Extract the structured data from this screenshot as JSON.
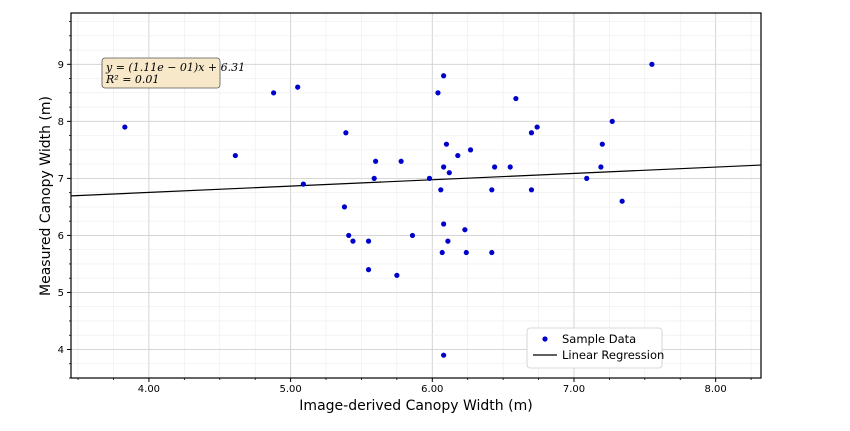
{
  "chart_data": {
    "type": "scatter",
    "xlabel": "Image-derived Canopy Width (m)",
    "ylabel": "Measured Canopy Width (m)",
    "xlim": [
      3.45,
      8.32
    ],
    "ylim": [
      3.5,
      9.9
    ],
    "x_ticks": [
      "4.00",
      "5.00",
      "6.00",
      "7.00",
      "8.00"
    ],
    "y_ticks": [
      "4",
      "5",
      "6",
      "7",
      "8",
      "9"
    ],
    "grid": true,
    "legend_position": "lower right",
    "series": [
      {
        "name": "Sample Data",
        "kind": "points",
        "color": "#0000cc",
        "points": [
          [
            3.83,
            7.9
          ],
          [
            4.61,
            7.4
          ],
          [
            4.88,
            8.5
          ],
          [
            5.05,
            8.6
          ],
          [
            5.09,
            6.9
          ],
          [
            5.38,
            6.5
          ],
          [
            5.39,
            7.8
          ],
          [
            5.41,
            6.0
          ],
          [
            5.44,
            5.9
          ],
          [
            5.55,
            5.9
          ],
          [
            5.55,
            5.4
          ],
          [
            5.59,
            7.0
          ],
          [
            5.6,
            7.3
          ],
          [
            5.75,
            5.3
          ],
          [
            5.78,
            7.3
          ],
          [
            5.86,
            6.0
          ],
          [
            5.98,
            7.0
          ],
          [
            6.04,
            8.5
          ],
          [
            6.06,
            6.8
          ],
          [
            6.07,
            5.7
          ],
          [
            6.08,
            6.2
          ],
          [
            6.08,
            7.2
          ],
          [
            6.08,
            8.8
          ],
          [
            6.08,
            3.9
          ],
          [
            6.1,
            7.6
          ],
          [
            6.11,
            5.9
          ],
          [
            6.12,
            7.1
          ],
          [
            6.18,
            7.4
          ],
          [
            6.23,
            6.1
          ],
          [
            6.24,
            5.7
          ],
          [
            6.27,
            7.5
          ],
          [
            6.42,
            5.7
          ],
          [
            6.42,
            6.8
          ],
          [
            6.44,
            7.2
          ],
          [
            6.55,
            7.2
          ],
          [
            6.59,
            8.4
          ],
          [
            6.7,
            7.8
          ],
          [
            6.7,
            6.8
          ],
          [
            6.74,
            7.9
          ],
          [
            7.09,
            7.0
          ],
          [
            7.19,
            7.2
          ],
          [
            7.2,
            7.6
          ],
          [
            7.27,
            8.0
          ],
          [
            7.34,
            6.6
          ],
          [
            7.55,
            9.0
          ]
        ]
      },
      {
        "name": "Linear Regression",
        "kind": "line",
        "color": "#000000",
        "slope": 0.111,
        "intercept": 6.31
      }
    ],
    "annotation": {
      "line1": "y = (1.11e − 01)x + 6.31",
      "line2": "R² = 0.01"
    }
  }
}
